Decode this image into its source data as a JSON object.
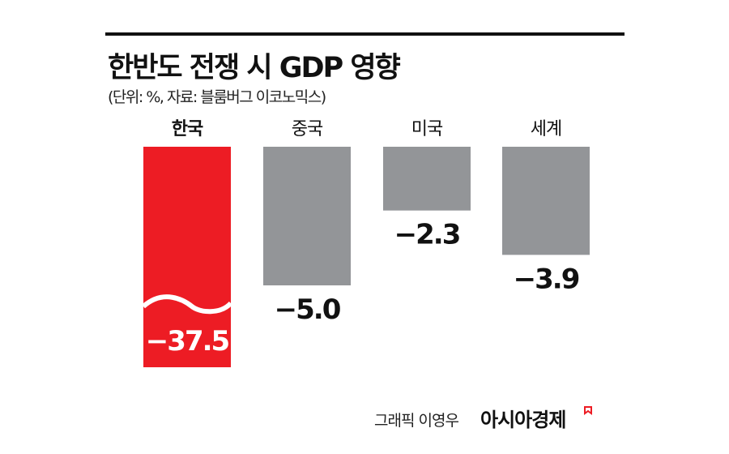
{
  "chart_data": {
    "type": "bar",
    "title": "한반도 전쟁 시 GDP 영향",
    "subtitle": "(단위: %, 자료: 블룸버그 이코노믹스)",
    "categories": [
      "한국",
      "중국",
      "미국",
      "세계"
    ],
    "values": [
      -37.5,
      -5.0,
      -2.3,
      -3.9
    ],
    "value_labels": [
      "−37.5",
      "−5.0",
      "−2.3",
      "−3.9"
    ],
    "colors": [
      "#ed1c24",
      "#939598",
      "#939598",
      "#939598"
    ],
    "broken_axis_bar": "한국",
    "xlabel": "",
    "ylabel": "",
    "grid": false
  },
  "credit": {
    "text": "그래픽 이영우",
    "brand": "아시아경제",
    "brand_color": "#ed1c24"
  }
}
